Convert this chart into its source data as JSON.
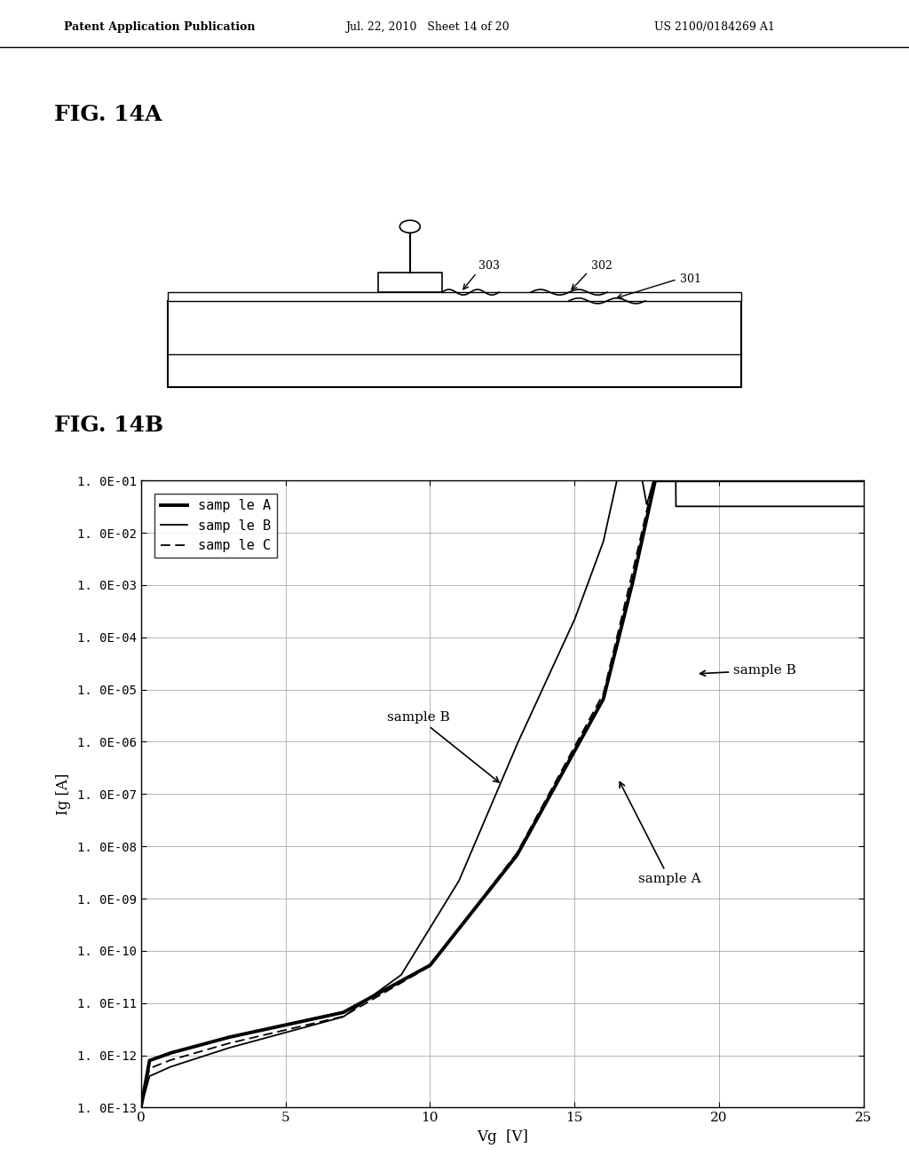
{
  "header_left": "Patent Application Publication",
  "header_mid": "Jul. 22, 2010   Sheet 14 of 20",
  "header_right": "US 2100/0184269 A1",
  "fig14a_label": "FIG. 14A",
  "fig14b_label": "FIG. 14B",
  "label_301": "301",
  "label_302": "302",
  "label_303": "303",
  "xlabel": "Vg  [V]",
  "ylabel": "Ig [A]",
  "ytick_labels": [
    "1. 0E-13",
    "1. 0E-12",
    "1. 0E-11",
    "1. 0E-10",
    "1. 0E-09",
    "1. 0E-08",
    "1. 0E-07",
    "1. 0E-06",
    "1. 0E-05",
    "1. 0E-04",
    "1. 0E-03",
    "1. 0E-02",
    "1. 0E-01"
  ],
  "legend_entries": [
    "samp le A",
    "samp le B",
    "samp le C"
  ],
  "background_color": "#ffffff",
  "line_color": "#000000",
  "grid_color": "#999999"
}
